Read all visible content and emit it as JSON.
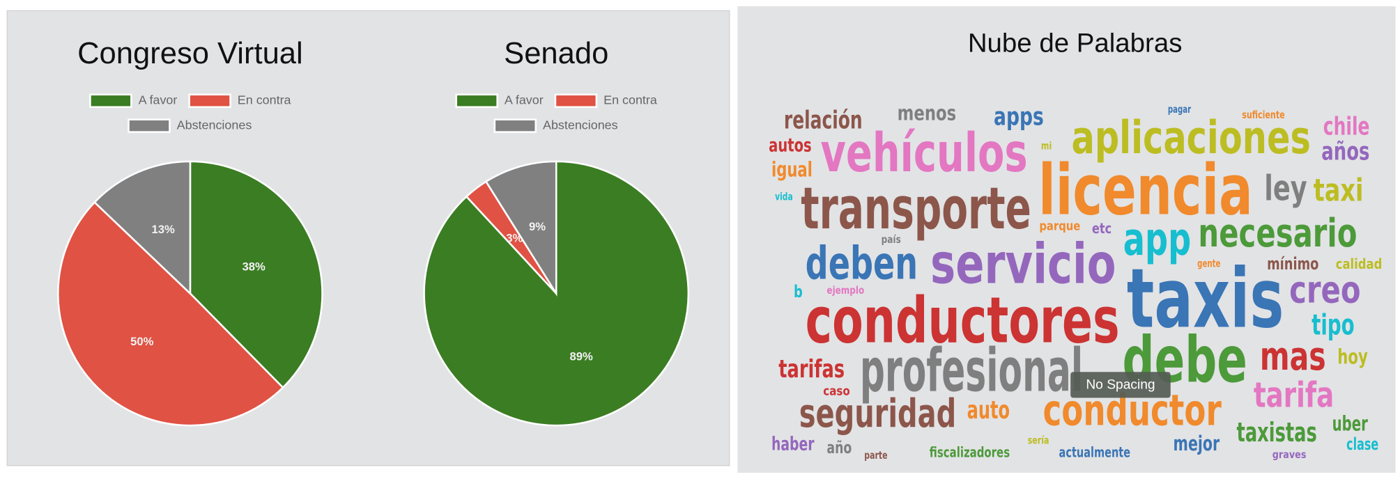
{
  "chart_data": [
    {
      "type": "pie",
      "title": "Congreso Virtual",
      "categories": [
        "A favor",
        "En contra",
        "Abstenciones"
      ],
      "values": [
        38,
        50,
        13
      ],
      "value_labels": [
        "38%",
        "50%",
        "13%"
      ],
      "colors": [
        "#3b7d23",
        "#e05244",
        "#808080"
      ]
    },
    {
      "type": "pie",
      "title": "Senado",
      "categories": [
        "A favor",
        "En contra",
        "Abstenciones"
      ],
      "values": [
        89,
        3,
        9
      ],
      "value_labels": [
        "89%",
        "3%",
        "9%"
      ],
      "colors": [
        "#3b7d23",
        "#e05244",
        "#808080"
      ]
    }
  ],
  "word_cloud": {
    "title": "Nube de Palabras",
    "tooltip": "No Spacing",
    "words": [
      {
        "text": "relación",
        "color": "#8c564b"
      },
      {
        "text": "menos",
        "color": "#7f7f7f"
      },
      {
        "text": "apps",
        "color": "#3a75b5"
      },
      {
        "text": "pagar",
        "color": "#3a75b5"
      },
      {
        "text": "suficiente",
        "color": "#f08a2c"
      },
      {
        "text": "chile",
        "color": "#e377c2"
      },
      {
        "text": "autos",
        "color": "#cc3333"
      },
      {
        "text": "vehículos",
        "color": "#e377c2"
      },
      {
        "text": "mi",
        "color": "#bcbd22"
      },
      {
        "text": "aplicaciones",
        "color": "#bcbd22"
      },
      {
        "text": "años",
        "color": "#9467bd"
      },
      {
        "text": "igual",
        "color": "#f08a2c"
      },
      {
        "text": "licencia",
        "color": "#f08a2c"
      },
      {
        "text": "ley",
        "color": "#7f7f7f"
      },
      {
        "text": "taxi",
        "color": "#bcbd22"
      },
      {
        "text": "vida",
        "color": "#17becf"
      },
      {
        "text": "transporte",
        "color": "#8c564b"
      },
      {
        "text": "parque",
        "color": "#f08a2c"
      },
      {
        "text": "etc",
        "color": "#9467bd"
      },
      {
        "text": "app",
        "color": "#17becf"
      },
      {
        "text": "necesario",
        "color": "#4c9a3a"
      },
      {
        "text": "país",
        "color": "#7f7f7f"
      },
      {
        "text": "deben",
        "color": "#3a75b5"
      },
      {
        "text": "servicio",
        "color": "#9467bd"
      },
      {
        "text": "gente",
        "color": "#f08a2c"
      },
      {
        "text": "mínimo",
        "color": "#8c564b"
      },
      {
        "text": "calidad",
        "color": "#bcbd22"
      },
      {
        "text": "taxis",
        "color": "#3a75b5"
      },
      {
        "text": "b",
        "color": "#17becf"
      },
      {
        "text": "ejemplo",
        "color": "#e377c2"
      },
      {
        "text": "creo",
        "color": "#9467bd"
      },
      {
        "text": "conductores",
        "color": "#cc3333"
      },
      {
        "text": "tipo",
        "color": "#17becf"
      },
      {
        "text": "debe",
        "color": "#4c9a3a"
      },
      {
        "text": "mas",
        "color": "#cc3333"
      },
      {
        "text": "hoy",
        "color": "#bcbd22"
      },
      {
        "text": "tarifas",
        "color": "#cc3333"
      },
      {
        "text": "profesional",
        "color": "#7f7f7f"
      },
      {
        "text": "caso",
        "color": "#cc3333"
      },
      {
        "text": "tarifa",
        "color": "#e377c2"
      },
      {
        "text": "seguridad",
        "color": "#8c564b"
      },
      {
        "text": "auto",
        "color": "#f08a2c"
      },
      {
        "text": "conductor",
        "color": "#f08a2c"
      },
      {
        "text": "uber",
        "color": "#4c9a3a"
      },
      {
        "text": "taxistas",
        "color": "#4c9a3a"
      },
      {
        "text": "haber",
        "color": "#9467bd"
      },
      {
        "text": "año",
        "color": "#7f7f7f"
      },
      {
        "text": "parte",
        "color": "#8c564b"
      },
      {
        "text": "fiscalizadores",
        "color": "#4c9a3a"
      },
      {
        "text": "sería",
        "color": "#bcbd22"
      },
      {
        "text": "actualmente",
        "color": "#3a75b5"
      },
      {
        "text": "mejor",
        "color": "#3a75b5"
      },
      {
        "text": "clase",
        "color": "#17becf"
      },
      {
        "text": "graves",
        "color": "#9467bd"
      }
    ]
  }
}
